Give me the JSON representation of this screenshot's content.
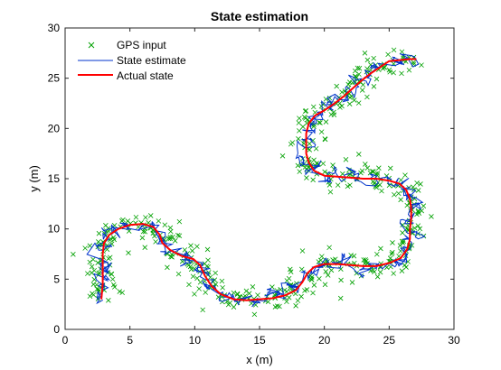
{
  "chart_data": {
    "type": "scatter",
    "title": "State estimation",
    "xlabel": "x (m)",
    "ylabel": "y (m)",
    "xlim": [
      0,
      30
    ],
    "ylim": [
      0,
      30
    ],
    "xticks": [
      "0",
      "5",
      "10",
      "15",
      "20",
      "25",
      "30"
    ],
    "yticks": [
      "0",
      "5",
      "10",
      "15",
      "20",
      "25",
      "30"
    ],
    "grid": false,
    "legend_position": "top-left",
    "series": [
      {
        "name": "GPS input",
        "style": "markers",
        "marker": "x",
        "color": "#00a000",
        "noise_spread_m": 1.0
      },
      {
        "name": "State estimate",
        "style": "line",
        "color": "#0033cc",
        "noise_spread_m": 0.35
      },
      {
        "name": "Actual state",
        "style": "line",
        "color": "#ff0000"
      }
    ],
    "actual_path": [
      [
        2.8,
        3.0
      ],
      [
        2.9,
        4.5
      ],
      [
        2.9,
        6.0
      ],
      [
        2.9,
        7.5
      ],
      [
        3.0,
        8.6
      ],
      [
        3.4,
        9.4
      ],
      [
        4.1,
        10.0
      ],
      [
        5.0,
        10.4
      ],
      [
        6.0,
        10.5
      ],
      [
        6.8,
        10.2
      ],
      [
        7.3,
        9.4
      ],
      [
        7.5,
        8.6
      ],
      [
        8.1,
        7.9
      ],
      [
        9.0,
        7.3
      ],
      [
        9.9,
        7.0
      ],
      [
        10.4,
        6.4
      ],
      [
        10.8,
        5.3
      ],
      [
        11.3,
        4.3
      ],
      [
        12.0,
        3.5
      ],
      [
        13.0,
        3.0
      ],
      [
        14.0,
        2.9
      ],
      [
        15.0,
        3.0
      ],
      [
        16.0,
        3.1
      ],
      [
        17.0,
        3.4
      ],
      [
        17.8,
        3.9
      ],
      [
        18.3,
        4.7
      ],
      [
        18.7,
        5.6
      ],
      [
        19.2,
        6.2
      ],
      [
        20.0,
        6.5
      ],
      [
        21.0,
        6.5
      ],
      [
        22.0,
        6.4
      ],
      [
        23.0,
        6.3
      ],
      [
        24.0,
        6.3
      ],
      [
        25.0,
        6.6
      ],
      [
        25.9,
        7.1
      ],
      [
        26.4,
        8.0
      ],
      [
        26.6,
        9.0
      ],
      [
        26.6,
        10.0
      ],
      [
        26.7,
        11.0
      ],
      [
        26.7,
        12.0
      ],
      [
        26.6,
        13.0
      ],
      [
        26.3,
        13.9
      ],
      [
        25.8,
        14.5
      ],
      [
        25.0,
        14.8
      ],
      [
        24.0,
        15.0
      ],
      [
        23.0,
        15.0
      ],
      [
        22.0,
        15.1
      ],
      [
        21.0,
        15.2
      ],
      [
        20.0,
        15.3
      ],
      [
        19.2,
        15.8
      ],
      [
        18.8,
        16.6
      ],
      [
        18.6,
        17.5
      ],
      [
        18.6,
        18.5
      ],
      [
        18.6,
        19.5
      ],
      [
        18.8,
        20.5
      ],
      [
        19.3,
        21.3
      ],
      [
        20.0,
        21.8
      ],
      [
        20.8,
        22.5
      ],
      [
        21.5,
        23.2
      ],
      [
        22.2,
        24.0
      ],
      [
        22.9,
        24.8
      ],
      [
        23.6,
        25.5
      ],
      [
        24.3,
        26.1
      ],
      [
        25.0,
        26.7
      ],
      [
        25.8,
        26.8
      ],
      [
        26.6,
        26.9
      ],
      [
        27.1,
        26.9
      ]
    ]
  }
}
